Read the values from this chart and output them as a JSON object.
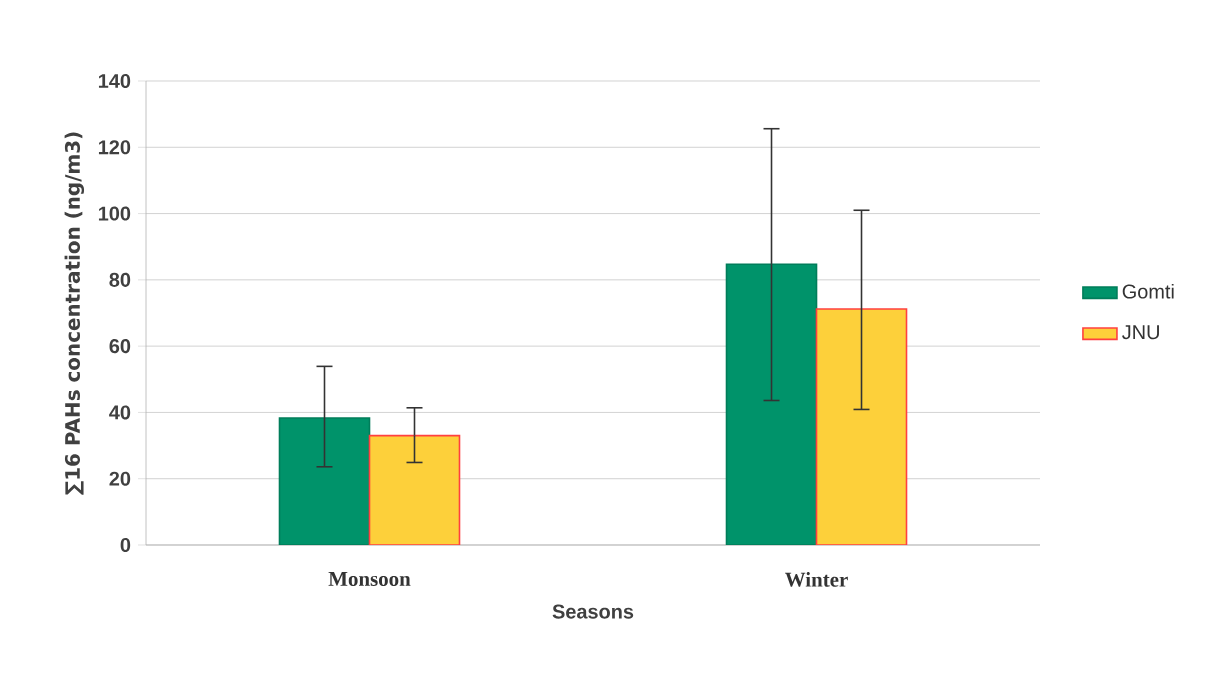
{
  "chart_data": {
    "type": "bar",
    "xlabel": "Seasons",
    "ylabel": "∑16 PAHs concentration (ng/m3)",
    "categories": [
      "Monsoon",
      "Winter"
    ],
    "series": [
      {
        "name": "Gomti",
        "color": "#00936a",
        "values": [
          38.3,
          84.7
        ],
        "errors": [
          [
            23.6,
            53.9
          ],
          [
            43.6,
            125.6
          ]
        ]
      },
      {
        "name": "JNU",
        "color": "#fdd03a",
        "values": [
          33.0,
          71.2
        ],
        "errors": [
          [
            24.9,
            41.4
          ],
          [
            40.9,
            101
          ]
        ]
      }
    ],
    "ylim": [
      0,
      140
    ],
    "yticks": [
      0,
      20,
      40,
      60,
      80,
      100,
      120,
      140
    ],
    "grid": "y",
    "legend": "right"
  }
}
